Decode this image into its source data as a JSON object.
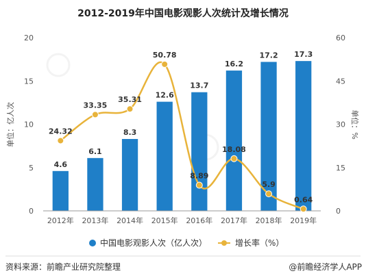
{
  "chart_data": {
    "type": "bar+line",
    "title": "2012-2019年中国电影观影人次统计及增长情况",
    "categories": [
      "2012年",
      "2013年",
      "2014年",
      "2015年",
      "2016年",
      "2017年",
      "2018年",
      "2019年"
    ],
    "series": [
      {
        "name": "中国电影观影人次（亿人次）",
        "type": "bar",
        "axis": "left",
        "color": "#1f7fc8",
        "values": [
          4.6,
          6.1,
          8.3,
          12.6,
          13.7,
          16.2,
          17.2,
          17.3
        ],
        "labels": [
          "4.6",
          "6.1",
          "8.3",
          "12.6",
          "13.7",
          "16.2",
          "17.2",
          "17.3"
        ]
      },
      {
        "name": "增长率（%）",
        "type": "line",
        "axis": "right",
        "color": "#e8b33a",
        "values": [
          24.32,
          33.35,
          35.31,
          50.78,
          8.89,
          18.08,
          5.9,
          0.64
        ],
        "labels": [
          "24.32",
          "33.35",
          "35.31",
          "50.78",
          "8.89",
          "18.08",
          "5.9",
          "0.64"
        ]
      }
    ],
    "ylabel_left": "单位：亿人次",
    "ylabel_right": "单位：%",
    "ylim_left": [
      0,
      20
    ],
    "ylim_right": [
      0,
      60
    ],
    "yticks_left": [
      "0",
      "5",
      "10",
      "15",
      "20"
    ],
    "yticks_right": [
      "0",
      "15",
      "30",
      "45",
      "60"
    ],
    "grid": false,
    "legend_position": "bottom"
  },
  "legend": {
    "bar_label": "中国电影观影人次（亿人次）",
    "line_label": "增长率（%）"
  },
  "footer": {
    "source": "资料来源：前瞻产业研究院整理",
    "brand": "@前瞻经济学人APP"
  },
  "watermark": {
    "text": "前瞻产业研究院"
  }
}
